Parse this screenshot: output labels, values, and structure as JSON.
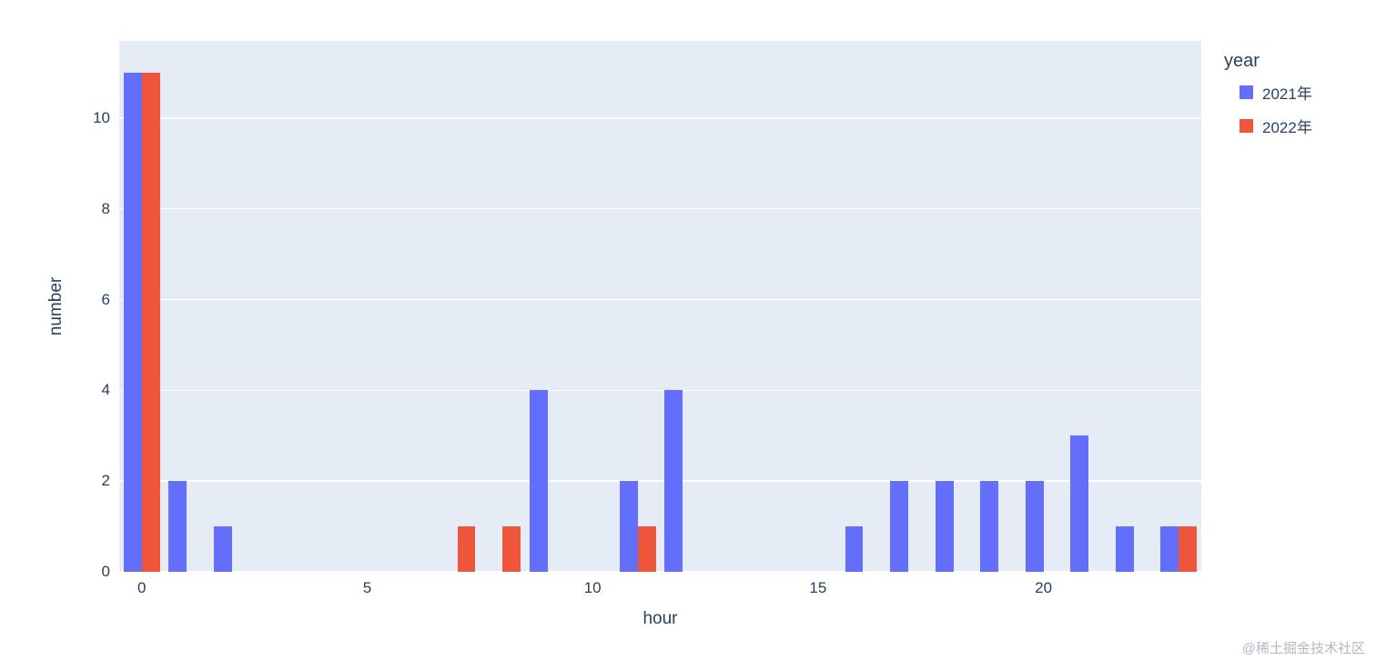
{
  "chart_data": {
    "type": "bar",
    "barmode": "group",
    "title": "",
    "xlabel": "hour",
    "ylabel": "number",
    "xlim": [
      -0.5,
      23.5
    ],
    "ylim": [
      0,
      11.7
    ],
    "xticks": [
      0,
      5,
      10,
      15,
      20
    ],
    "yticks": [
      0,
      2,
      4,
      6,
      8,
      10
    ],
    "categories": [
      0,
      1,
      2,
      3,
      4,
      5,
      6,
      7,
      8,
      9,
      10,
      11,
      12,
      13,
      14,
      15,
      16,
      17,
      18,
      19,
      20,
      21,
      22,
      23
    ],
    "series": [
      {
        "name": "2021年",
        "color": "#636EFA",
        "values": [
          11,
          2,
          1,
          0,
          0,
          0,
          0,
          0,
          0,
          4,
          0,
          2,
          4,
          0,
          0,
          0,
          1,
          2,
          2,
          2,
          2,
          3,
          1,
          1
        ]
      },
      {
        "name": "2022年",
        "color": "#EF553B",
        "values": [
          11,
          0,
          0,
          0,
          0,
          0,
          0,
          1,
          1,
          0,
          0,
          1,
          0,
          0,
          0,
          0,
          0,
          0,
          0,
          0,
          0,
          0,
          0,
          1
        ]
      }
    ],
    "plot_bgcolor": "#E5ECF6",
    "grid_color": "#FFFFFF",
    "text_color": "#2A3F5F",
    "legend_position": "top-right",
    "bar_width_fraction": 0.4
  },
  "legend": {
    "title": "year"
  },
  "watermark": "@稀土掘金技术社区"
}
